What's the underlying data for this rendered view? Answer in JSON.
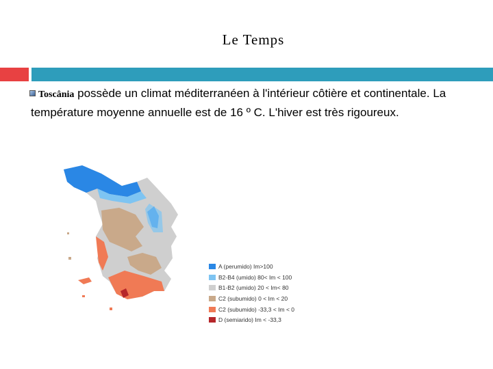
{
  "slide": {
    "title": "Le Temps",
    "accent_colors": {
      "red": "#e84142",
      "teal": "#2e9dbb"
    },
    "bullet_icon": "square-bullet-icon",
    "paragraph": {
      "place": "Toscânia",
      "text": " possède un climat méditerranéen à l'intérieur côtière et continentale. La température moyenne annuelle est de 16 º C. L'hiver est très rigoureux."
    }
  },
  "map": {
    "legend": [
      {
        "label": "A (perumido) Im>100",
        "color": "#2a87e5"
      },
      {
        "label": "B2-B4 (umido) 80< Im < 100",
        "color": "#7ec4f2"
      },
      {
        "label": "B1-B2 (umido) 20 < Im< 80",
        "color": "#cfcfcf"
      },
      {
        "label": "C2 (subumido) 0 < Im < 20",
        "color": "#c9a98a"
      },
      {
        "label": "C2 (subumido) -33,3 < Im < 0",
        "color": "#f07a55"
      },
      {
        "label": "D (semiarido) Im < -33,3",
        "color": "#b6262a"
      }
    ]
  }
}
